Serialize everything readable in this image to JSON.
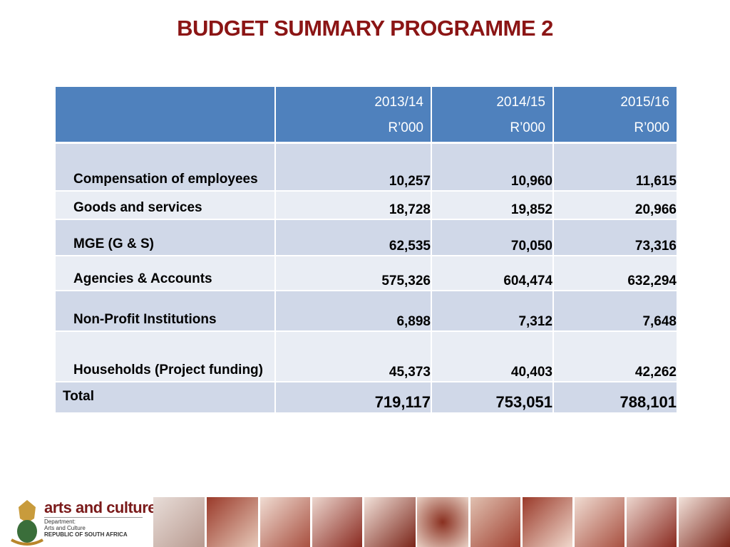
{
  "title": "BUDGET SUMMARY PROGRAMME 2",
  "table": {
    "header": [
      [
        "2013/14",
        "R’000"
      ],
      [
        "2014/15",
        "R’000"
      ],
      [
        "2015/16",
        "R’000"
      ]
    ],
    "rows": [
      [
        "Compensation of employees",
        "10,257",
        "10,960",
        "11,615"
      ],
      [
        "Goods and services",
        "18,728",
        "19,852",
        "20,966"
      ],
      [
        "MGE (G & S)",
        "62,535",
        "70,050",
        "73,316"
      ],
      [
        "Agencies & Accounts",
        "575,326",
        "604,474",
        "632,294"
      ],
      [
        "Non-Profit Institutions",
        "6,898",
        "7,312",
        "7,648"
      ],
      [
        "Households (Project funding)",
        "45,373",
        "40,403",
        "42,262"
      ]
    ],
    "total": [
      "Total",
      "719,117",
      "753,051",
      "788,101"
    ]
  },
  "footer": {
    "brand": "arts and culture",
    "department": "Department:",
    "name": "Arts and Culture",
    "country": "REPUBLIC OF SOUTH AFRICA"
  }
}
